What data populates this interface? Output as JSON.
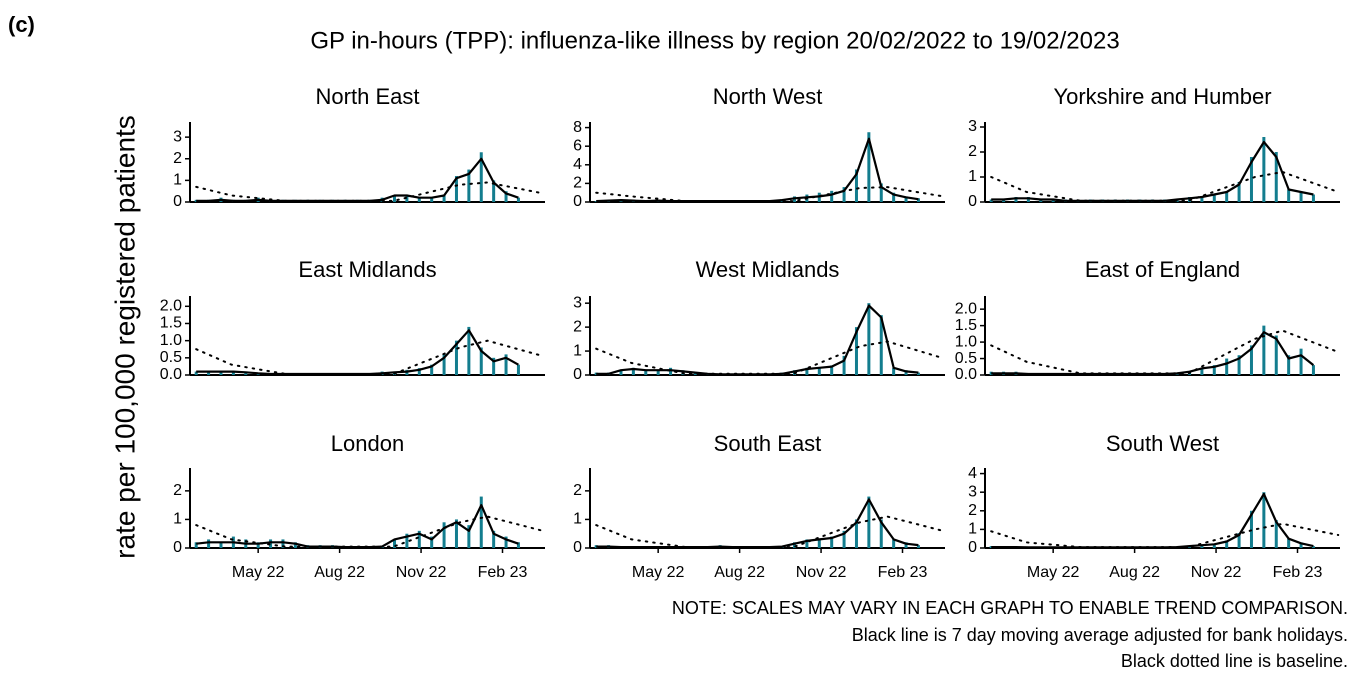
{
  "panel_label": "(c)",
  "title": "GP in-hours (TPP): influenza-like illness by region 20/02/2022 to 19/02/2023",
  "y_label": "rate per 100,000 registered patients",
  "notes": [
    "NOTE: SCALES MAY VARY IN EACH GRAPH TO ENABLE TREND COMPARISON.",
    "Black line is 7 day moving average adjusted for bank holidays.",
    "Black dotted line is baseline."
  ],
  "bar_color": "#137d8e",
  "line_color": "#000000",
  "baseline_color": "#000000",
  "x_axis": {
    "x": [
      "2022-02-20",
      "2022-03-06",
      "2022-03-20",
      "2022-04-03",
      "2022-04-17",
      "2022-05-01",
      "2022-05-15",
      "2022-05-29",
      "2022-06-12",
      "2022-06-26",
      "2022-07-10",
      "2022-07-24",
      "2022-08-07",
      "2022-08-21",
      "2022-09-04",
      "2022-09-18",
      "2022-10-02",
      "2022-10-16",
      "2022-10-30",
      "2022-11-13",
      "2022-11-27",
      "2022-12-11",
      "2022-12-25",
      "2023-01-08",
      "2023-01-22",
      "2023-02-05",
      "2023-02-19"
    ],
    "baseline_x": [
      "2022-02-20",
      "2022-04-01",
      "2022-06-01",
      "2022-10-01",
      "2022-12-15",
      "2023-01-15",
      "2023-03-19"
    ],
    "xlim": [
      "2022-02-13",
      "2023-03-21"
    ],
    "xticks": [
      {
        "value": "2022-05-01",
        "label": "May 22"
      },
      {
        "value": "2022-08-01",
        "label": "Aug 22"
      },
      {
        "value": "2022-11-01",
        "label": "Nov 22"
      },
      {
        "value": "2023-02-01",
        "label": "Feb 23"
      }
    ]
  },
  "chart_data": [
    {
      "type": "bar_line",
      "title": "North East",
      "ylim": [
        0,
        3.7
      ],
      "yticks": [
        0,
        1,
        2,
        3
      ],
      "rates": [
        0.1,
        0.1,
        0.2,
        0.1,
        0.1,
        0.2,
        0.1,
        0.1,
        0.1,
        0.1,
        0.1,
        0.1,
        0.1,
        0.1,
        0.1,
        0.2,
        0.3,
        0.3,
        0.2,
        0.2,
        0.3,
        1.2,
        1.5,
        2.3,
        1.0,
        0.5,
        0.2
      ],
      "average": [
        0.05,
        0.05,
        0.1,
        0.05,
        0.05,
        0.1,
        0.05,
        0.05,
        0.05,
        0.05,
        0.05,
        0.05,
        0.05,
        0.05,
        0.05,
        0.1,
        0.3,
        0.3,
        0.2,
        0.2,
        0.3,
        1.1,
        1.3,
        2.0,
        0.9,
        0.4,
        0.2
      ],
      "baseline": [
        0.7,
        0.3,
        0.05,
        0.05,
        0.8,
        0.9,
        0.4
      ]
    },
    {
      "type": "bar_line",
      "title": "North West",
      "ylim": [
        0,
        8.6
      ],
      "yticks": [
        0,
        2,
        4,
        6,
        8
      ],
      "rates": [
        0.1,
        0.2,
        0.3,
        0.2,
        0.1,
        0.2,
        0.1,
        0.1,
        0.1,
        0.1,
        0.2,
        0.1,
        0.1,
        0.1,
        0.1,
        0.3,
        0.6,
        0.8,
        1.0,
        1.2,
        1.6,
        3.5,
        7.5,
        2.0,
        1.0,
        0.6,
        0.4
      ],
      "average": [
        0.1,
        0.15,
        0.2,
        0.15,
        0.1,
        0.15,
        0.1,
        0.1,
        0.1,
        0.1,
        0.1,
        0.1,
        0.1,
        0.1,
        0.1,
        0.2,
        0.4,
        0.5,
        0.6,
        0.8,
        1.2,
        3.0,
        6.8,
        1.6,
        0.8,
        0.5,
        0.3
      ],
      "baseline": [
        1.0,
        0.6,
        0.1,
        0.1,
        1.5,
        1.6,
        0.6
      ]
    },
    {
      "type": "bar_line",
      "title": "Yorkshire and Humber",
      "ylim": [
        0,
        3.2
      ],
      "yticks": [
        0,
        1,
        2,
        3
      ],
      "rates": [
        0.1,
        0.1,
        0.2,
        0.2,
        0.1,
        0.1,
        0.1,
        0.1,
        0.1,
        0.1,
        0.1,
        0.1,
        0.1,
        0.1,
        0.1,
        0.1,
        0.2,
        0.2,
        0.3,
        0.4,
        0.8,
        1.8,
        2.6,
        2.0,
        0.5,
        0.4,
        0.3
      ],
      "average": [
        0.1,
        0.1,
        0.15,
        0.15,
        0.1,
        0.1,
        0.05,
        0.05,
        0.05,
        0.05,
        0.05,
        0.05,
        0.05,
        0.05,
        0.05,
        0.1,
        0.15,
        0.2,
        0.3,
        0.4,
        0.7,
        1.6,
        2.4,
        1.8,
        0.5,
        0.4,
        0.3
      ],
      "baseline": [
        1.0,
        0.4,
        0.05,
        0.05,
        1.0,
        1.2,
        0.4
      ]
    },
    {
      "type": "bar_line",
      "title": "East Midlands",
      "ylim": [
        0,
        2.3
      ],
      "yticks": [
        {
          "value": 0,
          "label": "0.0"
        },
        {
          "value": 0.5,
          "label": "0.5"
        },
        {
          "value": 1,
          "label": "1.0"
        },
        {
          "value": 1.5,
          "label": "1.5"
        },
        {
          "value": 2,
          "label": "2.0"
        }
      ],
      "rates": [
        0.1,
        0.1,
        0.1,
        0.1,
        0.1,
        0.05,
        0.05,
        0.05,
        0.05,
        0.05,
        0.05,
        0.05,
        0.05,
        0.05,
        0.05,
        0.1,
        0.1,
        0.15,
        0.2,
        0.3,
        0.6,
        1.0,
        1.4,
        0.8,
        0.5,
        0.6,
        0.3
      ],
      "average": [
        0.1,
        0.1,
        0.1,
        0.1,
        0.08,
        0.05,
        0.03,
        0.03,
        0.03,
        0.03,
        0.03,
        0.03,
        0.03,
        0.03,
        0.03,
        0.05,
        0.08,
        0.1,
        0.15,
        0.25,
        0.5,
        0.9,
        1.3,
        0.7,
        0.4,
        0.5,
        0.3
      ],
      "baseline": [
        0.75,
        0.3,
        0.03,
        0.03,
        0.8,
        1.0,
        0.55
      ]
    },
    {
      "type": "bar_line",
      "title": "West Midlands",
      "ylim": [
        0,
        3.3
      ],
      "yticks": [
        0,
        1,
        2,
        3
      ],
      "rates": [
        0.1,
        0.1,
        0.2,
        0.3,
        0.2,
        0.2,
        0.3,
        0.2,
        0.1,
        0.05,
        0.05,
        0.05,
        0.05,
        0.05,
        0.05,
        0.1,
        0.2,
        0.3,
        0.3,
        0.4,
        0.8,
        2.0,
        3.0,
        2.5,
        0.3,
        0.2,
        0.1
      ],
      "average": [
        0.05,
        0.05,
        0.2,
        0.25,
        0.2,
        0.2,
        0.2,
        0.15,
        0.1,
        0.05,
        0.03,
        0.03,
        0.03,
        0.03,
        0.03,
        0.05,
        0.15,
        0.25,
        0.3,
        0.35,
        0.6,
        1.8,
        2.9,
        2.4,
        0.3,
        0.15,
        0.1
      ],
      "baseline": [
        1.1,
        0.5,
        0.05,
        0.05,
        1.2,
        1.4,
        0.7
      ]
    },
    {
      "type": "bar_line",
      "title": "East of England",
      "ylim": [
        0,
        2.4
      ],
      "yticks": [
        {
          "value": 0,
          "label": "0.0"
        },
        {
          "value": 0.5,
          "label": "0.5"
        },
        {
          "value": 1,
          "label": "1.0"
        },
        {
          "value": 1.5,
          "label": "1.5"
        },
        {
          "value": 2,
          "label": "2.0"
        }
      ],
      "rates": [
        0.1,
        0.1,
        0.1,
        0.05,
        0.05,
        0.05,
        0.05,
        0.05,
        0.05,
        0.05,
        0.05,
        0.05,
        0.05,
        0.05,
        0.05,
        0.05,
        0.1,
        0.2,
        0.3,
        0.5,
        0.6,
        0.9,
        1.5,
        1.2,
        0.6,
        0.8,
        0.3
      ],
      "average": [
        0.05,
        0.05,
        0.05,
        0.03,
        0.03,
        0.03,
        0.03,
        0.03,
        0.03,
        0.03,
        0.03,
        0.03,
        0.03,
        0.03,
        0.03,
        0.05,
        0.1,
        0.2,
        0.25,
        0.35,
        0.5,
        0.8,
        1.3,
        1.1,
        0.5,
        0.6,
        0.3
      ],
      "baseline": [
        0.9,
        0.4,
        0.05,
        0.05,
        1.1,
        1.35,
        0.7
      ]
    },
    {
      "type": "bar_line",
      "title": "London",
      "ylim": [
        0,
        2.8
      ],
      "yticks": [
        0,
        1,
        2
      ],
      "rates": [
        0.2,
        0.3,
        0.2,
        0.4,
        0.3,
        0.2,
        0.3,
        0.3,
        0.2,
        0.1,
        0.1,
        0.1,
        0.05,
        0.05,
        0.05,
        0.05,
        0.3,
        0.5,
        0.6,
        0.4,
        0.9,
        1.0,
        0.8,
        1.8,
        0.6,
        0.4,
        0.2
      ],
      "average": [
        0.15,
        0.2,
        0.2,
        0.2,
        0.15,
        0.15,
        0.2,
        0.2,
        0.15,
        0.05,
        0.05,
        0.05,
        0.03,
        0.03,
        0.03,
        0.05,
        0.3,
        0.4,
        0.5,
        0.3,
        0.7,
        0.9,
        0.6,
        1.5,
        0.5,
        0.3,
        0.15
      ],
      "baseline": [
        0.8,
        0.3,
        0.05,
        0.05,
        0.9,
        1.1,
        0.6
      ]
    },
    {
      "type": "bar_line",
      "title": "South East",
      "ylim": [
        0,
        2.8
      ],
      "yticks": [
        0,
        1,
        2
      ],
      "rates": [
        0.1,
        0.1,
        0.05,
        0.05,
        0.05,
        0.05,
        0.05,
        0.05,
        0.05,
        0.05,
        0.1,
        0.05,
        0.05,
        0.05,
        0.05,
        0.05,
        0.2,
        0.3,
        0.3,
        0.4,
        0.6,
        1.0,
        1.8,
        1.0,
        0.3,
        0.2,
        0.1
      ],
      "average": [
        0.05,
        0.05,
        0.03,
        0.03,
        0.03,
        0.03,
        0.03,
        0.03,
        0.03,
        0.03,
        0.05,
        0.03,
        0.03,
        0.03,
        0.03,
        0.05,
        0.15,
        0.25,
        0.3,
        0.35,
        0.5,
        0.9,
        1.7,
        0.9,
        0.3,
        0.15,
        0.1
      ],
      "baseline": [
        0.8,
        0.3,
        0.03,
        0.03,
        0.9,
        1.1,
        0.6
      ]
    },
    {
      "type": "bar_line",
      "title": "South West",
      "ylim": [
        0,
        4.3
      ],
      "yticks": [
        0,
        1,
        2,
        3,
        4
      ],
      "rates": [
        0.1,
        0.1,
        0.1,
        0.05,
        0.05,
        0.05,
        0.05,
        0.05,
        0.05,
        0.05,
        0.05,
        0.05,
        0.05,
        0.05,
        0.05,
        0.05,
        0.1,
        0.15,
        0.2,
        0.4,
        0.8,
        2.0,
        3.0,
        1.5,
        0.5,
        0.3,
        0.1
      ],
      "average": [
        0.05,
        0.05,
        0.05,
        0.03,
        0.03,
        0.03,
        0.03,
        0.03,
        0.03,
        0.03,
        0.03,
        0.03,
        0.03,
        0.03,
        0.03,
        0.05,
        0.1,
        0.15,
        0.2,
        0.35,
        0.7,
        1.8,
        2.9,
        1.4,
        0.5,
        0.25,
        0.1
      ],
      "baseline": [
        0.9,
        0.3,
        0.05,
        0.05,
        1.0,
        1.3,
        0.7
      ]
    }
  ]
}
